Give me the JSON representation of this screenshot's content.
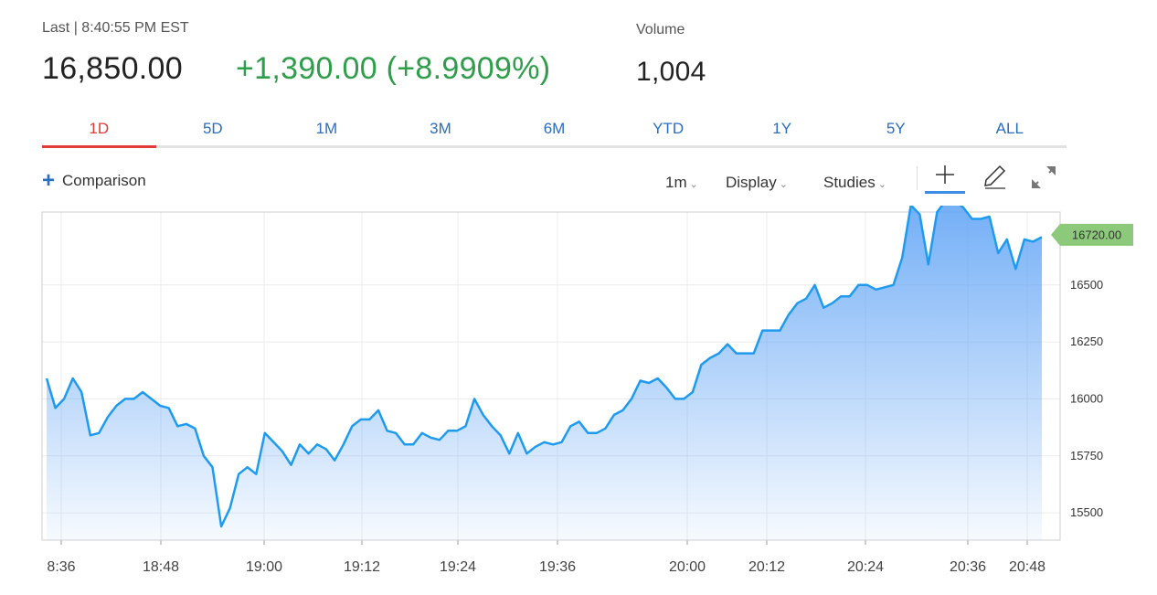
{
  "quote": {
    "last_label": "Last | 8:40:55 PM EST",
    "last_price": "16,850.00",
    "change": "+1,390.00 (+8.9909%)",
    "volume_label": "Volume",
    "volume_value": "1,004"
  },
  "tabs": [
    {
      "label": "1D",
      "active": true
    },
    {
      "label": "5D",
      "active": false
    },
    {
      "label": "1M",
      "active": false
    },
    {
      "label": "3M",
      "active": false
    },
    {
      "label": "6M",
      "active": false
    },
    {
      "label": "YTD",
      "active": false
    },
    {
      "label": "1Y",
      "active": false
    },
    {
      "label": "5Y",
      "active": false
    },
    {
      "label": "ALL",
      "active": false
    }
  ],
  "toolbar": {
    "comparison_label": "Comparison",
    "interval_label": "1m",
    "display_label": "Display",
    "studies_label": "Studies",
    "icons": [
      "plus-icon",
      "chevron-down-icon",
      "crosshair-icon",
      "pencil-icon",
      "expand-icon"
    ]
  },
  "colors": {
    "accent_red": "#e03a3a",
    "tab_blue": "#2b6dbf",
    "positive_green": "#2e9e4a",
    "line_blue": "#1e9bf0",
    "price_tag_green": "#8cc97a"
  },
  "chart_data": {
    "type": "area",
    "x_tick_labels": [
      "8:36",
      "18:48",
      "19:00",
      "19:12",
      "19:24",
      "19:36",
      "20:00",
      "20:12",
      "20:24",
      "20:36",
      "20:48"
    ],
    "y_ticks": [
      15500,
      15750,
      16000,
      16250,
      16500
    ],
    "ylim": [
      15380,
      16820
    ],
    "grid": true,
    "current_price_label": "16720.00",
    "current_price": 16720,
    "series": [
      {
        "values": [
          16090,
          15960,
          16000,
          16090,
          16030,
          15840,
          15850,
          15920,
          15970,
          16000,
          16000,
          16030,
          16000,
          15970,
          15960,
          15880,
          15890,
          15870,
          15750,
          15700,
          15440,
          15520,
          15670,
          15700,
          15670,
          15850,
          15810,
          15770,
          15710,
          15800,
          15760,
          15800,
          15780,
          15730,
          15800,
          15880,
          15910,
          15910,
          15950,
          15860,
          15850,
          15800,
          15800,
          15850,
          15830,
          15820,
          15860,
          15860,
          15880,
          16000,
          15930,
          15880,
          15840,
          15760,
          15850,
          15760,
          15790,
          15810,
          15800,
          15810,
          15880,
          15900,
          15850,
          15850,
          15870,
          15930,
          15950,
          16000,
          16080,
          16070,
          16090,
          16050,
          16000,
          16000,
          16030,
          16150,
          16180,
          16200,
          16240,
          16200,
          16200,
          16200,
          16300,
          16300,
          16300,
          16370,
          16420,
          16440,
          16500,
          16400,
          16420,
          16450,
          16450,
          16500,
          16500,
          16480,
          16490,
          16500,
          16620,
          16850,
          16810,
          16590,
          16820,
          16870,
          16870,
          16840,
          16790,
          16790,
          16800,
          16640,
          16700,
          16570,
          16700,
          16690,
          16710
        ]
      }
    ]
  }
}
